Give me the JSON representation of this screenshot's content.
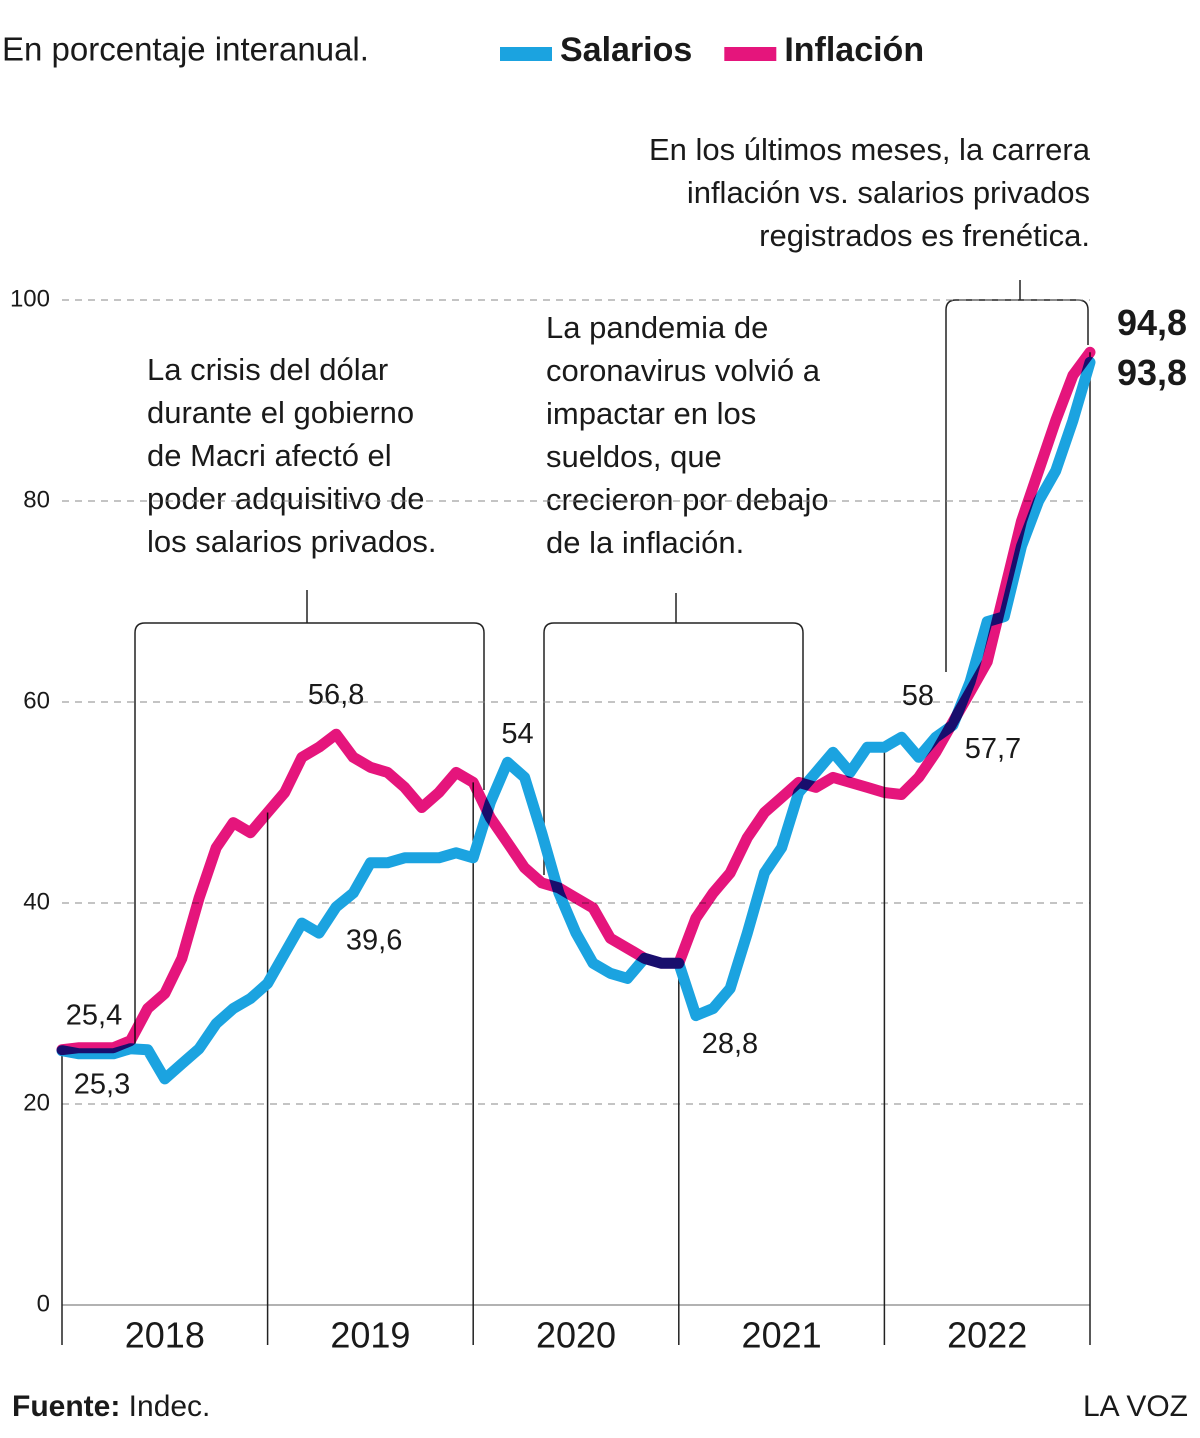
{
  "chart_data": {
    "type": "line",
    "subtitle": "En porcentaje interanual.",
    "categories": [
      null,
      null,
      null,
      null,
      null,
      null,
      "2018",
      null,
      null,
      null,
      null,
      null,
      null,
      null,
      null,
      null,
      null,
      null,
      "2019",
      null,
      null,
      null,
      null,
      null,
      null,
      null,
      null,
      null,
      null,
      null,
      "2020",
      null,
      null,
      null,
      null,
      null,
      null,
      null,
      null,
      null,
      null,
      null,
      "2021",
      null,
      null,
      null,
      null,
      null,
      null,
      null,
      null,
      null,
      null,
      null,
      "2022",
      null,
      null,
      null,
      null,
      null,
      null
    ],
    "series": [
      {
        "name": "Salarios",
        "color": "#1ba3e0",
        "values": [
          25.3,
          25,
          25,
          25,
          25.5,
          25.4,
          22.5,
          24,
          25.5,
          28,
          29.5,
          30.5,
          32,
          35,
          38,
          37,
          39.6,
          41,
          44,
          44,
          44.5,
          44.5,
          44.5,
          45,
          44.5,
          50,
          54,
          52.5,
          47,
          41,
          37,
          34,
          33,
          32.5,
          34.5,
          34,
          34,
          28.8,
          29.5,
          31.5,
          37,
          43,
          45.5,
          51,
          53,
          55,
          53,
          55.5,
          55.5,
          56.5,
          54.5,
          56.5,
          57.7,
          62,
          68,
          68.5,
          75.5,
          80,
          83,
          88,
          93.8
        ],
        "value_labels": [
          "25,3",
          null,
          null,
          null,
          null,
          null,
          null,
          null,
          null,
          null,
          null,
          null,
          null,
          null,
          null,
          null,
          "39,6",
          null,
          null,
          null,
          null,
          null,
          null,
          null,
          null,
          null,
          "54",
          null,
          null,
          null,
          null,
          null,
          null,
          null,
          null,
          null,
          null,
          "28,8",
          null,
          null,
          null,
          null,
          null,
          null,
          null,
          null,
          null,
          null,
          null,
          null,
          null,
          null,
          "57,7",
          null,
          null,
          null,
          null,
          null,
          null,
          null,
          "93,8"
        ]
      },
      {
        "name": "Inflación",
        "color": "#e5157c",
        "values": [
          25.4,
          25.6,
          25.6,
          25.6,
          26.3,
          29.5,
          31,
          34.5,
          40.5,
          45.5,
          48,
          47,
          49,
          51,
          54.5,
          55.5,
          56.8,
          54.5,
          53.5,
          53,
          51.5,
          49.5,
          51,
          53,
          52,
          48.5,
          46,
          43.5,
          42,
          41.5,
          40.5,
          39.5,
          36.5,
          35.5,
          34.5,
          34,
          34,
          38.5,
          41,
          43,
          46.5,
          49,
          50.5,
          52,
          51.5,
          52.5,
          52,
          51.5,
          51,
          50.8,
          52.5,
          55,
          58,
          61,
          64,
          71,
          78,
          83,
          88,
          92.5,
          94.8
        ],
        "value_labels": [
          "25,4",
          null,
          null,
          null,
          null,
          null,
          null,
          null,
          null,
          null,
          null,
          null,
          null,
          null,
          null,
          null,
          "56,8",
          null,
          null,
          null,
          null,
          null,
          null,
          null,
          null,
          null,
          null,
          null,
          null,
          null,
          null,
          null,
          null,
          null,
          null,
          null,
          null,
          null,
          null,
          null,
          null,
          null,
          null,
          null,
          null,
          null,
          null,
          null,
          null,
          null,
          null,
          null,
          "58",
          null,
          null,
          null,
          null,
          null,
          null,
          null,
          "94,8"
        ]
      }
    ],
    "ylim": [
      0,
      100
    ],
    "yticks": [
      0,
      20,
      40,
      60,
      80,
      100
    ],
    "grid": true,
    "annotations": [
      {
        "lines": [
          "La crisis del dólar",
          "durante el gobierno",
          "de Macri afectó el",
          "poder adquisitivo de",
          "los salarios privados."
        ]
      },
      {
        "lines": [
          "La pandemia de",
          "coronavirus volvió a",
          "impactar en los",
          "sueldos, que",
          "crecieron por debajo",
          "de la inflación."
        ]
      },
      {
        "lines": [
          "En los últimos meses, la carrera",
          "inflación vs. salarios privados",
          "registrados es frenética."
        ]
      }
    ],
    "source": {
      "label": "Fuente:",
      "text": "Indec."
    },
    "credit": "LA VOZ"
  }
}
